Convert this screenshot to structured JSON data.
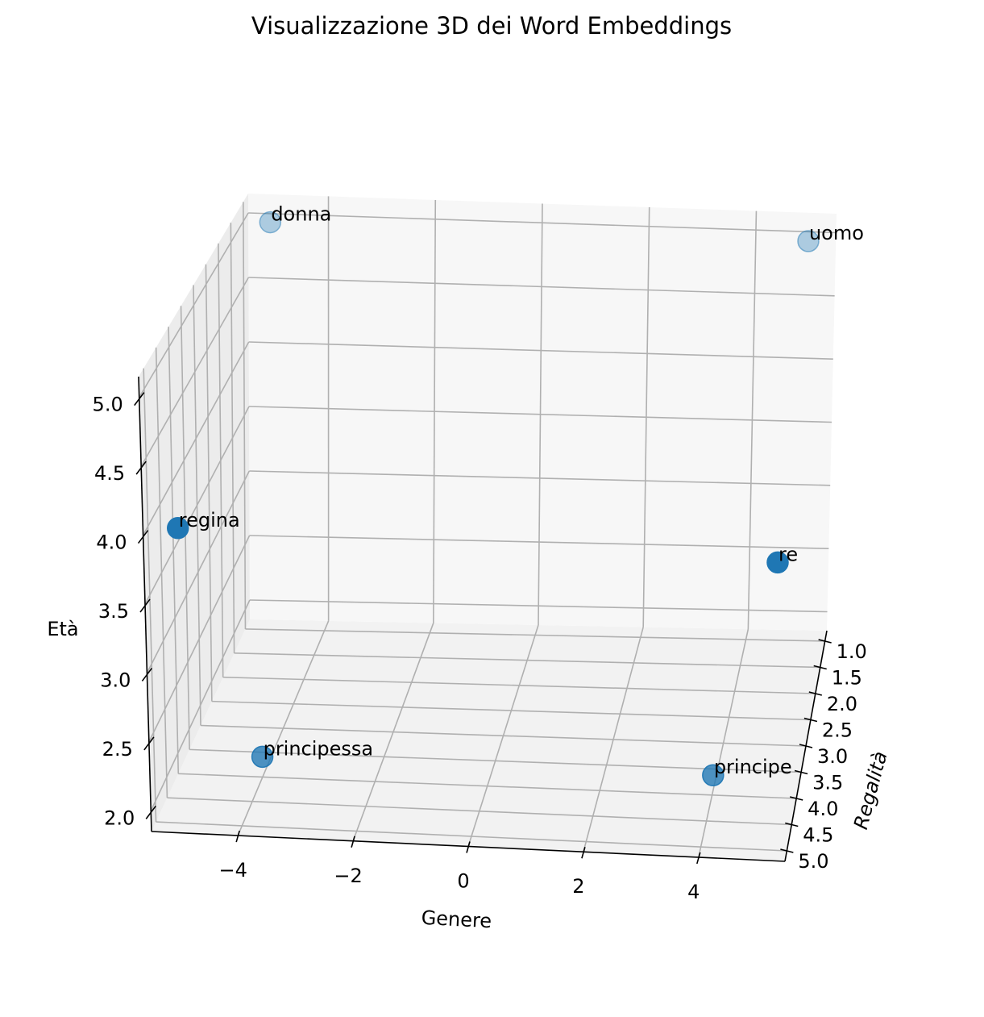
{
  "chart_data": {
    "type": "scatter3d",
    "title": "Visualizzazione 3D dei Word Embeddings",
    "xlabel": "Genere",
    "ylabel": "Regalità",
    "zlabel": "Età",
    "grid": true,
    "xticks": [
      "−4",
      "−2",
      "0",
      "2",
      "4"
    ],
    "yticks": [
      "1.0",
      "1.5",
      "2.0",
      "2.5",
      "3.0",
      "3.5",
      "4.0",
      "4.5",
      "5.0"
    ],
    "zticks": [
      "2.0",
      "2.5",
      "3.0",
      "3.5",
      "4.0",
      "4.5",
      "5.0"
    ],
    "color": "#1f77b4",
    "points": [
      {
        "label": "re",
        "x": 5,
        "y": 5,
        "z": 4
      },
      {
        "label": "regina",
        "x": -5,
        "y": 5,
        "z": 4
      },
      {
        "label": "uomo",
        "x": 5,
        "y": 1,
        "z": 5
      },
      {
        "label": "donna",
        "x": -5,
        "y": 1,
        "z": 5
      },
      {
        "label": "principe",
        "x": 4,
        "y": 4,
        "z": 2
      },
      {
        "label": "principessa",
        "x": -4,
        "y": 4,
        "z": 2
      }
    ]
  }
}
